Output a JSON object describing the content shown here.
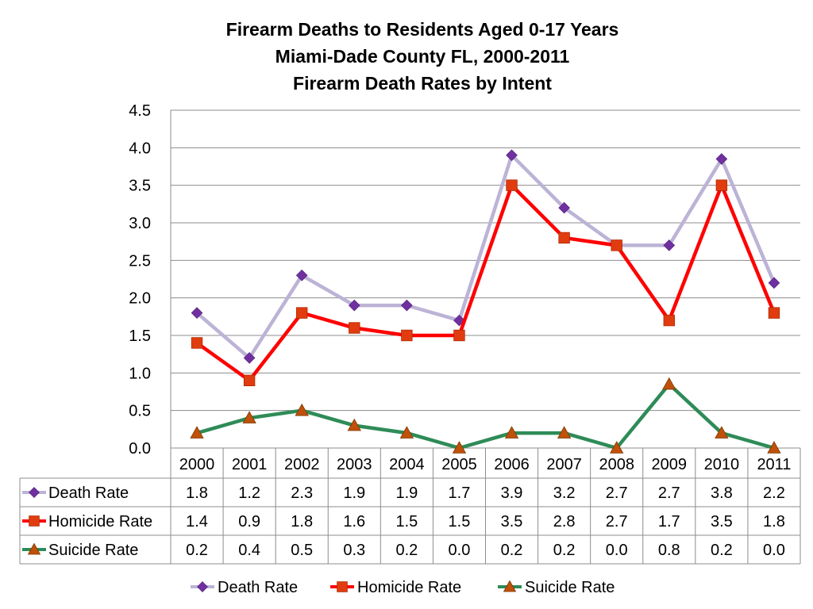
{
  "chart_data": {
    "type": "line",
    "title_lines": [
      "Firearm Deaths to Residents Aged 0-17 Years",
      "Miami-Dade County FL, 2000-2011",
      "Firearm Death Rates by Intent"
    ],
    "xlabel": "",
    "ylabel": "",
    "ylim": [
      0,
      4.5
    ],
    "ytick_step": 0.5,
    "grid": true,
    "legend_placement": "bottom",
    "categories": [
      "2000",
      "2001",
      "2002",
      "2003",
      "2004",
      "2005",
      "2006",
      "2007",
      "2008",
      "2009",
      "2010",
      "2011"
    ],
    "series": [
      {
        "name": "Death Rate",
        "line_color": "#BCB3D6",
        "marker_color": "#7030A0",
        "marker": "diamond",
        "values": [
          1.8,
          1.2,
          2.3,
          1.9,
          1.9,
          1.7,
          3.9,
          3.2,
          2.7,
          2.7,
          3.85,
          2.2
        ],
        "table_values": [
          "1.8",
          "1.2",
          "2.3",
          "1.9",
          "1.9",
          "1.7",
          "3.9",
          "3.2",
          "2.7",
          "2.7",
          "3.8",
          "2.2"
        ]
      },
      {
        "name": "Homicide Rate",
        "line_color": "#FF0000",
        "marker_color": "#E03C10",
        "marker": "square",
        "values": [
          1.4,
          0.9,
          1.8,
          1.6,
          1.5,
          1.5,
          3.5,
          2.8,
          2.7,
          1.7,
          3.5,
          1.8
        ],
        "table_values": [
          "1.4",
          "0.9",
          "1.8",
          "1.6",
          "1.5",
          "1.5",
          "3.5",
          "2.8",
          "2.7",
          "1.7",
          "3.5",
          "1.8"
        ]
      },
      {
        "name": "Suicide Rate",
        "line_color": "#2E8B57",
        "marker_color": "#C0500A",
        "marker": "triangle",
        "values": [
          0.2,
          0.4,
          0.5,
          0.3,
          0.2,
          0.0,
          0.2,
          0.2,
          0.0,
          0.85,
          0.2,
          0.0
        ],
        "table_values": [
          "0.2",
          "0.4",
          "0.5",
          "0.3",
          "0.2",
          "0.0",
          "0.2",
          "0.2",
          "0.0",
          "0.8",
          "0.2",
          "0.0"
        ]
      }
    ]
  }
}
